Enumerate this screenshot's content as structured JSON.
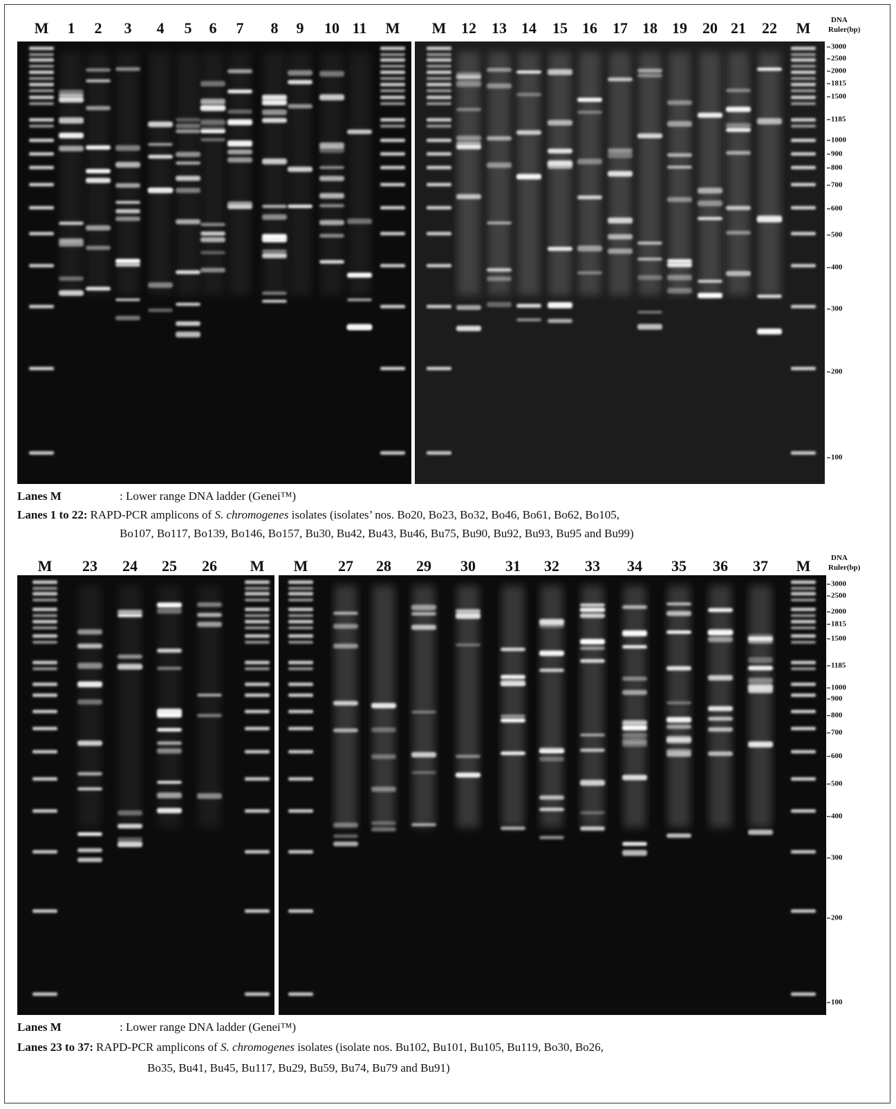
{
  "panels": [
    {
      "lanes": [
        "M",
        "1",
        "2",
        "3",
        "4",
        "5",
        "6",
        "7",
        "8",
        "9",
        "10",
        "11",
        "M",
        "M",
        "12",
        "13",
        "14",
        "15",
        "16",
        "17",
        "18",
        "19",
        "20",
        "21",
        "22",
        "M"
      ],
      "ruler_title": [
        "DNA",
        "Ruler(bp)"
      ],
      "ruler": [
        "3000",
        "2500",
        "2000",
        "1815",
        "1500",
        "1185",
        "1000",
        "900",
        "800",
        "700",
        "600",
        "500",
        "400",
        "300",
        "200",
        "100"
      ],
      "captions": [
        {
          "label": "Lanes M",
          "text": ": Lower range DNA ladder (Genei™)"
        },
        {
          "label": "Lanes 1 to 22:",
          "before": "RAPD-PCR amplicons of ",
          "italic": "S. chromogenes",
          "after": " isolates (isolates’ nos. Bo20, Bo23, Bo32, Bo46, Bo61, Bo62, Bo105,",
          "line2": "Bo107, Bo117, Bo139, Bo146, Bo157, Bu30, Bu42, Bu43, Bu46, Bu75, Bu90, Bu92, Bu93, Bu95 and Bu99)"
        }
      ]
    },
    {
      "lanes": [
        "M",
        "23",
        "24",
        "25",
        "26",
        "M",
        "M",
        "27",
        "28",
        "29",
        "30",
        "31",
        "32",
        "33",
        "34",
        "35",
        "36",
        "37",
        "M"
      ],
      "ruler_title": [
        "DNA",
        "Ruler(bp)"
      ],
      "ruler": [
        "3000",
        "2500",
        "2000",
        "1815",
        "1500",
        "1185",
        "1000",
        "900",
        "800",
        "700",
        "600",
        "500",
        "400",
        "300",
        "200",
        "100"
      ],
      "captions": [
        {
          "label": "Lanes M",
          "text": ": Lower range DNA ladder (Genei™)"
        },
        {
          "label": "Lanes 23 to 37:",
          "before": "RAPD-PCR amplicons of ",
          "italic": "S. chromogenes",
          "after": " isolates (isolate nos. Bu102,  Bu101, Bu105, Bu119, Bo30, Bo26,",
          "line2": "Bo35, Bu41, Bu45, Bu117, Bu29, Bu59, Bu74, Bu79 and Bu91)"
        }
      ]
    }
  ]
}
